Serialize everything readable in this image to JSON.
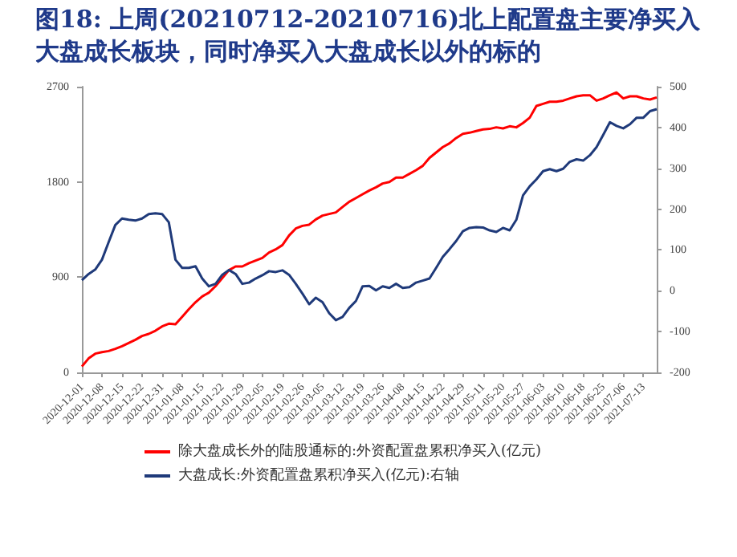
{
  "chart_data": {
    "type": "line",
    "title": "图18: 上周(20210712-20210716)北上配置盘主要净买入大盘成长板块，同时净买入大盘成长以外的标的",
    "categories": [
      "2020-12-01",
      null,
      null,
      "2020-12-08",
      null,
      null,
      "2020-12-15",
      null,
      null,
      "2020-12-22",
      null,
      null,
      "2020-12-31",
      null,
      null,
      "2021-01-08",
      null,
      null,
      "2021-01-15",
      null,
      null,
      "2021-01-22",
      null,
      null,
      "2021-01-29",
      null,
      null,
      "2021-02-05",
      null,
      null,
      "2021-02-19",
      null,
      null,
      "2021-02-26",
      null,
      null,
      "2021-03-05",
      null,
      null,
      "2021-03-12",
      null,
      null,
      "2021-03-19",
      null,
      null,
      "2021-03-26",
      null,
      null,
      "2021-04-08",
      null,
      null,
      "2021-04-15",
      null,
      null,
      "2021-04-22",
      null,
      null,
      "2021-04-29",
      null,
      null,
      "2021-05-11",
      null,
      null,
      "2021-05-20",
      null,
      null,
      "2021-05-27",
      null,
      null,
      "2021-06-03",
      null,
      null,
      "2021-06-10",
      null,
      null,
      "2021-06-18",
      null,
      null,
      "2021-06-25",
      null,
      null,
      "2021-07-06",
      null,
      null,
      "2021-07-13",
      null,
      null
    ],
    "series": [
      {
        "name": "除大盘成长外的陆股通标的:外资配置盘累积净买入(亿元)",
        "color": "#ff0000",
        "values": [
          56,
          132,
          177,
          192,
          202,
          223,
          248,
          278,
          308,
          344,
          364,
          394,
          435,
          460,
          455,
          526,
          597,
          663,
          718,
          754,
          815,
          890,
          966,
          1001,
          1001,
          1032,
          1057,
          1082,
          1133,
          1163,
          1203,
          1294,
          1360,
          1385,
          1396,
          1446,
          1482,
          1497,
          1512,
          1563,
          1613,
          1648,
          1684,
          1719,
          1749,
          1785,
          1800,
          1841,
          1841,
          1876,
          1911,
          1952,
          2027,
          2078,
          2129,
          2164,
          2215,
          2255,
          2265,
          2281,
          2296,
          2301,
          2316,
          2306,
          2326,
          2316,
          2357,
          2407,
          2518,
          2538,
          2558,
          2558,
          2568,
          2589,
          2609,
          2619,
          2619,
          2568,
          2589,
          2619,
          2645,
          2589,
          2609,
          2609,
          2589,
          2579,
          2599
        ]
      },
      {
        "name": "大盘成长:外资配置盘累积净买入(亿元):右轴",
        "color": "#1f3a7a",
        "axis": "y2",
        "values": [
          26,
          41,
          52,
          76,
          119,
          161,
          177,
          174,
          172,
          177,
          188,
          190,
          188,
          168,
          76,
          56,
          56,
          60,
          30,
          11,
          17,
          39,
          51,
          41,
          17,
          20,
          30,
          38,
          48,
          46,
          50,
          39,
          17,
          -7,
          -33,
          -17,
          -28,
          -55,
          -72,
          -64,
          -42,
          -25,
          11,
          12,
          1,
          11,
          7,
          17,
          7,
          9,
          20,
          25,
          30,
          56,
          83,
          102,
          122,
          146,
          154,
          156,
          155,
          148,
          144,
          154,
          148,
          174,
          234,
          256,
          273,
          293,
          298,
          293,
          299,
          316,
          322,
          319,
          332,
          352,
          382,
          413,
          404,
          398,
          408,
          424,
          424,
          440,
          445
        ]
      }
    ],
    "ylim": [
      0,
      2700
    ],
    "yticks": [
      0,
      900,
      1800,
      2700
    ],
    "y2lim": [
      -200,
      500
    ],
    "y2ticks": [
      -200,
      -100,
      0,
      100,
      200,
      300,
      400,
      500
    ],
    "legend": "bottom"
  }
}
